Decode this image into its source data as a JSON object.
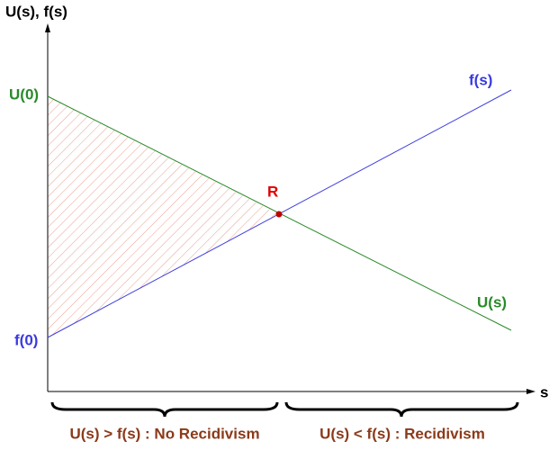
{
  "axes": {
    "y_label": "U(s), f(s)",
    "x_label": "s"
  },
  "lines": [
    {
      "name": "U(s)",
      "start_label": "U(0)"
    },
    {
      "name": "f(s)",
      "start_label": "f(0)"
    }
  ],
  "intersection": {
    "label": "R"
  },
  "regions": [
    {
      "label": "U(s) > f(s) : No Recidivism"
    },
    {
      "label": "U(s) < f(s) : Recidivism"
    }
  ]
}
